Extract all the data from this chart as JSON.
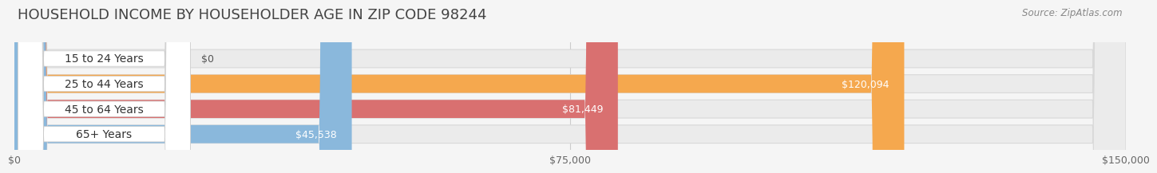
{
  "title": "HOUSEHOLD INCOME BY HOUSEHOLDER AGE IN ZIP CODE 98244",
  "source": "Source: ZipAtlas.com",
  "categories": [
    "15 to 24 Years",
    "25 to 44 Years",
    "45 to 64 Years",
    "65+ Years"
  ],
  "values": [
    0,
    120094,
    81449,
    45538
  ],
  "bar_colors": [
    "#f4a0b0",
    "#f5a84e",
    "#d97070",
    "#8ab8dc"
  ],
  "value_labels": [
    "$0",
    "$120,094",
    "$81,449",
    "$45,538"
  ],
  "xlim": [
    0,
    150000
  ],
  "xticks": [
    0,
    75000,
    150000
  ],
  "xtick_labels": [
    "$0",
    "$75,000",
    "$150,000"
  ],
  "bg_color": "#f5f5f5",
  "bar_bg_color": "#ebebeb",
  "title_fontsize": 13,
  "source_fontsize": 8.5,
  "label_fontsize": 10,
  "value_fontsize": 9,
  "tick_fontsize": 9
}
